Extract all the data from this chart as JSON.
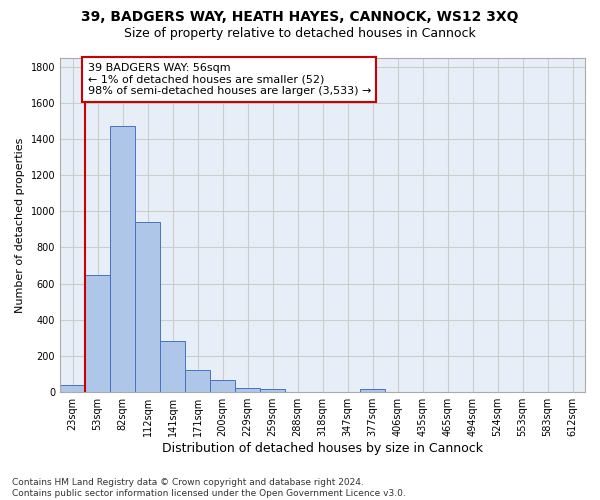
{
  "title1": "39, BADGERS WAY, HEATH HAYES, CANNOCK, WS12 3XQ",
  "title2": "Size of property relative to detached houses in Cannock",
  "xlabel": "Distribution of detached houses by size in Cannock",
  "ylabel": "Number of detached properties",
  "categories": [
    "23sqm",
    "53sqm",
    "82sqm",
    "112sqm",
    "141sqm",
    "171sqm",
    "200sqm",
    "229sqm",
    "259sqm",
    "288sqm",
    "318sqm",
    "347sqm",
    "377sqm",
    "406sqm",
    "435sqm",
    "465sqm",
    "494sqm",
    "524sqm",
    "553sqm",
    "583sqm",
    "612sqm"
  ],
  "values": [
    40,
    650,
    1470,
    940,
    285,
    125,
    65,
    25,
    15,
    0,
    0,
    0,
    15,
    0,
    0,
    0,
    0,
    0,
    0,
    0,
    0
  ],
  "bar_color": "#aec6e8",
  "bar_edge_color": "#4472c4",
  "vline_color": "#cc0000",
  "vline_pos": 0.5,
  "annotation_text": "39 BADGERS WAY: 56sqm\n← 1% of detached houses are smaller (52)\n98% of semi-detached houses are larger (3,533) →",
  "annotation_box_color": "#ffffff",
  "annotation_box_edge": "#cc0000",
  "ylim": [
    0,
    1850
  ],
  "yticks": [
    0,
    200,
    400,
    600,
    800,
    1000,
    1200,
    1400,
    1600,
    1800
  ],
  "grid_color": "#cccccc",
  "bg_color": "#e8eef7",
  "footnote": "Contains HM Land Registry data © Crown copyright and database right 2024.\nContains public sector information licensed under the Open Government Licence v3.0.",
  "title1_fontsize": 10,
  "title2_fontsize": 9,
  "xlabel_fontsize": 9,
  "ylabel_fontsize": 8,
  "tick_fontsize": 7,
  "annotation_fontsize": 8,
  "footnote_fontsize": 6.5
}
